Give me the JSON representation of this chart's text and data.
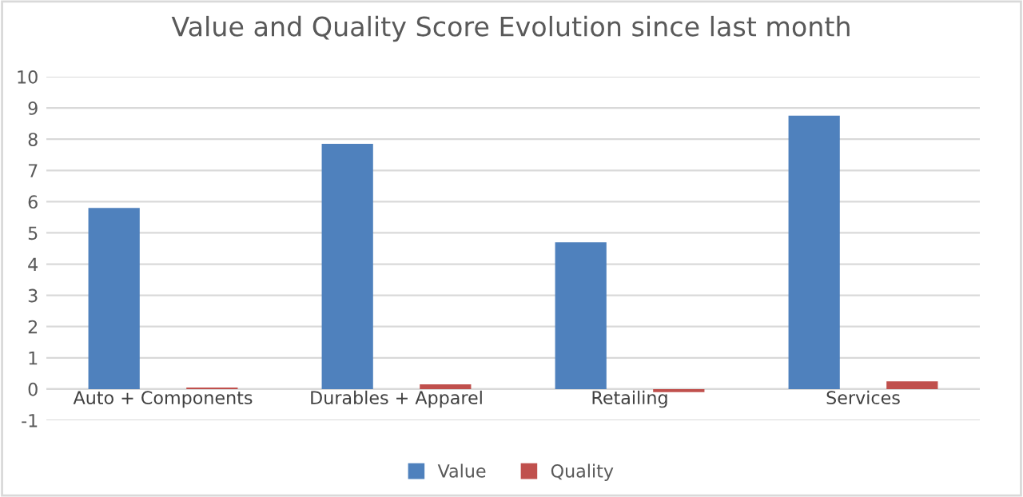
{
  "chart_data": {
    "type": "bar",
    "title": "Value and Quality Score Evolution since last month",
    "categories": [
      "Auto + Components",
      "Durables + Apparel",
      "Retailing",
      "Services"
    ],
    "series": [
      {
        "name": "Value",
        "color": "#4f81bd",
        "values": [
          5.8,
          7.85,
          4.7,
          8.75
        ]
      },
      {
        "name": "Quality",
        "color": "#c0504d",
        "values": [
          0.05,
          0.15,
          -0.1,
          0.25
        ]
      }
    ],
    "ylim": [
      -1,
      10
    ],
    "yticks": [
      -1,
      0,
      1,
      2,
      3,
      4,
      5,
      6,
      7,
      8,
      9,
      10
    ],
    "grid": "y",
    "legend": "bottom"
  }
}
